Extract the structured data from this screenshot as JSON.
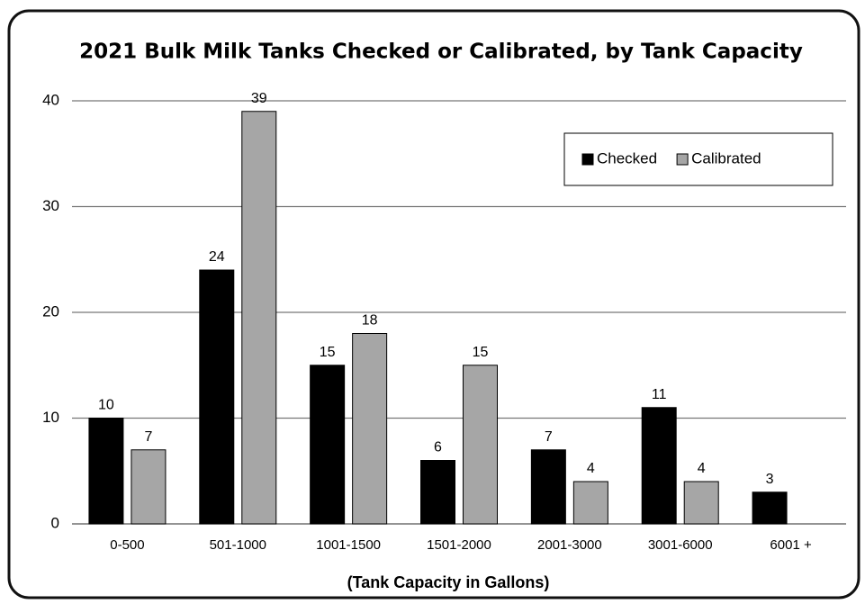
{
  "chart_data": {
    "type": "bar",
    "title": "2021 Bulk Milk Tanks Checked or Calibrated, by Tank Capacity",
    "x_label": "(Tank Capacity in Gallons)",
    "categories": [
      "0-500",
      "501-1000",
      "1001-1500",
      "1501-2000",
      "2001-3000",
      "3001-6000",
      "6001 +"
    ],
    "series": [
      {
        "name": "Checked",
        "color": "#000000",
        "values": [
          10,
          24,
          15,
          6,
          7,
          11,
          3
        ]
      },
      {
        "name": "Calibrated",
        "color": "#a6a6a6",
        "values": [
          7,
          39,
          18,
          15,
          4,
          4,
          null
        ]
      }
    ],
    "ylim": [
      0,
      40
    ],
    "yticks": [
      0,
      10,
      20,
      30,
      40
    ],
    "grid": true,
    "legend": "upper right"
  }
}
